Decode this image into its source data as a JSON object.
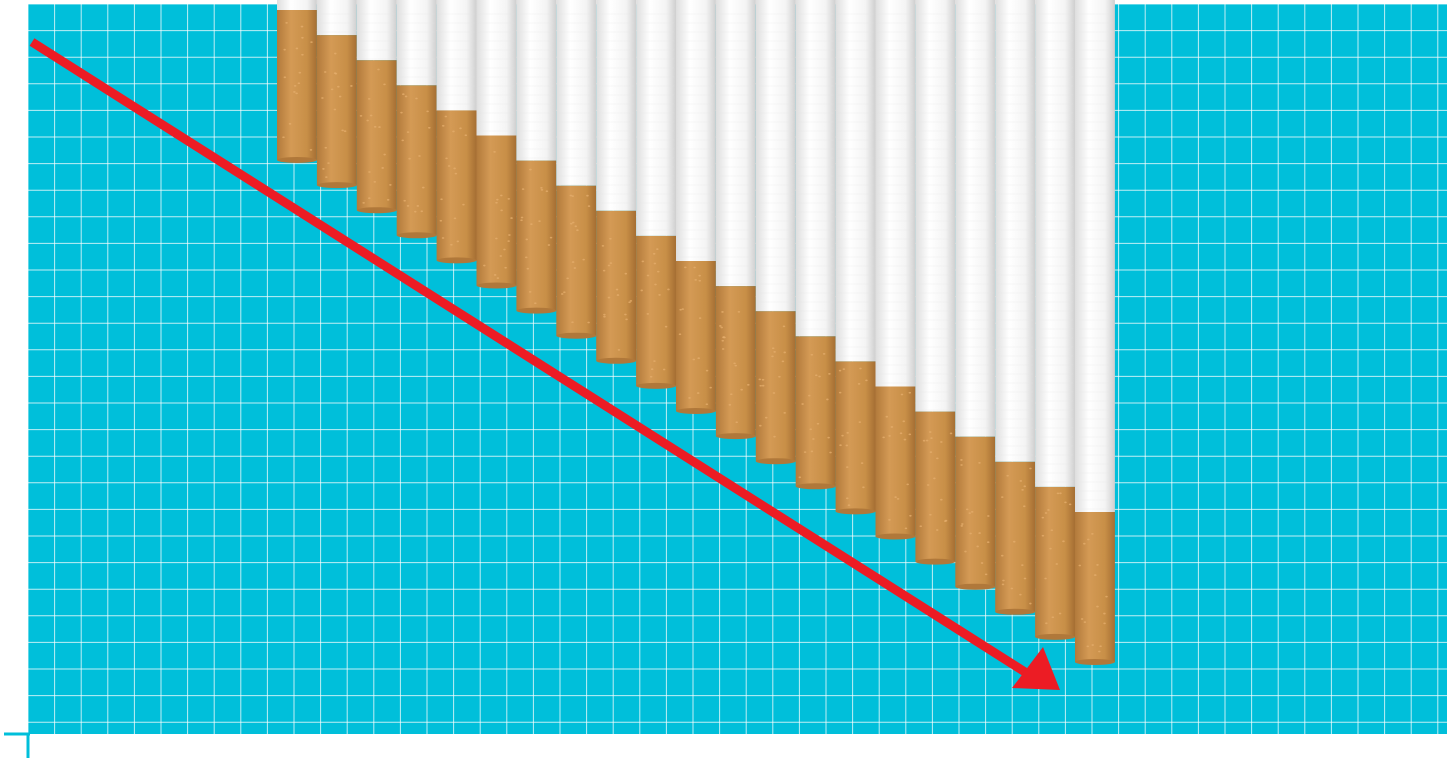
{
  "colors": {
    "background": "#00bfda",
    "grid_line": "#ffffff",
    "paper": "#f7f7f7",
    "paper_shade": "#e2e2e2",
    "filter": "#c88f47",
    "filter_shade": "#b0783a",
    "filter_speckle": "#e3ad6b",
    "arrow": "#ec1c24",
    "page": "#ffffff"
  },
  "scene": {
    "subject": "descending-cigarettes-chart",
    "cigarette_count": 21,
    "trend": "decreasing",
    "arrow_direction": "down-right"
  }
}
